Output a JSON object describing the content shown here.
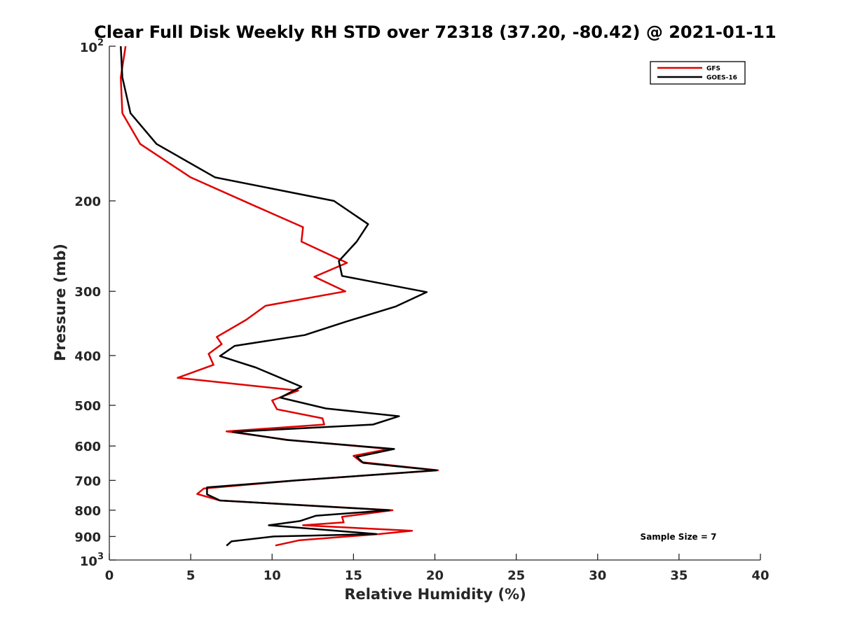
{
  "chart_data": {
    "type": "line",
    "title": "Clear Full Disk Weekly RH STD over 72318 (37.20, -80.42) @ 2021-01-11",
    "xlabel": "Relative Humidity (%)",
    "ylabel": "Pressure (mb)",
    "xlim": [
      0,
      40
    ],
    "ylim": [
      100,
      1000
    ],
    "yscale": "log",
    "y_reversed": true,
    "x_ticks": [
      0,
      5,
      10,
      15,
      20,
      25,
      30,
      35,
      40
    ],
    "x_tick_labels": [
      "0",
      "5",
      "10",
      "15",
      "20",
      "25",
      "30",
      "35",
      "40"
    ],
    "y_ticks": [
      {
        "value": 100,
        "base": "10",
        "exp": "2"
      },
      {
        "value": 200,
        "label": "200"
      },
      {
        "value": 300,
        "label": "300"
      },
      {
        "value": 400,
        "label": "400"
      },
      {
        "value": 500,
        "label": "500"
      },
      {
        "value": 600,
        "label": "600"
      },
      {
        "value": 700,
        "label": "700"
      },
      {
        "value": 800,
        "label": "800"
      },
      {
        "value": 900,
        "label": "900"
      },
      {
        "value": 1000,
        "base": "10",
        "exp": "3"
      }
    ],
    "grid": false,
    "legend_position": "top-right",
    "annotation": "Sample Size = 7",
    "series": [
      {
        "name": "GFS",
        "color": "#e00000",
        "points": [
          [
            1.0,
            100
          ],
          [
            0.7,
            115
          ],
          [
            0.8,
            135
          ],
          [
            1.9,
            155
          ],
          [
            5.0,
            180
          ],
          [
            9.0,
            205
          ],
          [
            11.9,
            225
          ],
          [
            11.8,
            240
          ],
          [
            14.6,
            264
          ],
          [
            12.6,
            281
          ],
          [
            14.5,
            300
          ],
          [
            9.6,
            320
          ],
          [
            8.4,
            341
          ],
          [
            6.6,
            368
          ],
          [
            6.9,
            380
          ],
          [
            6.1,
            397
          ],
          [
            6.4,
            417
          ],
          [
            4.2,
            442
          ],
          [
            11.6,
            468
          ],
          [
            10.0,
            489
          ],
          [
            10.3,
            509
          ],
          [
            13.1,
            530
          ],
          [
            13.2,
            545
          ],
          [
            7.2,
            562
          ],
          [
            11.0,
            584
          ],
          [
            17.2,
            608
          ],
          [
            15.0,
            627
          ],
          [
            15.5,
            645
          ],
          [
            20.2,
            669
          ],
          [
            11.5,
            700
          ],
          [
            5.8,
            726
          ],
          [
            5.4,
            744
          ],
          [
            6.8,
            766
          ],
          [
            17.4,
            800
          ],
          [
            14.3,
            824
          ],
          [
            14.4,
            845
          ],
          [
            11.9,
            856
          ],
          [
            18.6,
            877
          ],
          [
            16.6,
            890
          ],
          [
            11.7,
            915
          ],
          [
            10.2,
            937
          ]
        ]
      },
      {
        "name": "GOES-16",
        "color": "#000000",
        "points": [
          [
            0.7,
            100
          ],
          [
            0.8,
            115
          ],
          [
            1.3,
            135
          ],
          [
            2.9,
            155
          ],
          [
            6.5,
            180
          ],
          [
            13.8,
            200
          ],
          [
            15.9,
            222
          ],
          [
            15.2,
            240
          ],
          [
            14.1,
            262
          ],
          [
            14.3,
            280
          ],
          [
            19.5,
            301
          ],
          [
            17.6,
            321
          ],
          [
            14.5,
            344
          ],
          [
            12.0,
            365
          ],
          [
            7.7,
            383
          ],
          [
            6.8,
            401
          ],
          [
            9.0,
            422
          ],
          [
            11.8,
            460
          ],
          [
            10.5,
            483
          ],
          [
            13.3,
            507
          ],
          [
            17.8,
            525
          ],
          [
            16.2,
            545
          ],
          [
            7.6,
            563
          ],
          [
            10.9,
            584
          ],
          [
            17.5,
            608
          ],
          [
            15.2,
            630
          ],
          [
            15.6,
            647
          ],
          [
            20.1,
            669
          ],
          [
            11.5,
            700
          ],
          [
            6.0,
            722
          ],
          [
            6.0,
            745
          ],
          [
            6.8,
            766
          ],
          [
            17.2,
            800
          ],
          [
            12.7,
            820
          ],
          [
            11.7,
            840
          ],
          [
            9.8,
            856
          ],
          [
            16.4,
            890
          ],
          [
            10.1,
            900
          ],
          [
            7.5,
            920
          ],
          [
            7.2,
            938
          ]
        ]
      }
    ]
  }
}
